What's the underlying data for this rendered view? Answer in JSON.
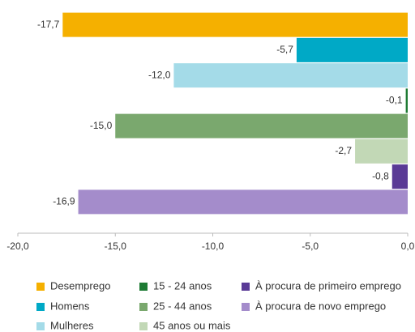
{
  "chart_data": {
    "type": "hbar",
    "categories": [
      "Desemprego",
      "Homens",
      "Mulheres",
      "15 - 24 anos",
      "25 - 44 anos",
      "45 anos ou mais",
      "À procura de primeiro emprego",
      "À procura de novo emprego"
    ],
    "values": [
      -17.7,
      -5.7,
      -12.0,
      -0.1,
      -15.0,
      -2.7,
      -0.8,
      -16.9
    ],
    "value_labels": [
      "-17,7",
      "-5,7",
      "-12,0",
      "-0,1",
      "-15,0",
      "-2,7",
      "-0,8",
      "-16,9"
    ],
    "colors": [
      "#f5b000",
      "#00a9c6",
      "#a4dbe8",
      "#1e7b34",
      "#7aa86e",
      "#c2d8b6",
      "#5a3a96",
      "#a48ccb"
    ],
    "xlim": [
      -20,
      0
    ],
    "xticks": [
      {
        "value": -20,
        "label": "-20,0"
      },
      {
        "value": -15,
        "label": "-15,0"
      },
      {
        "value": -10,
        "label": "-10,0"
      },
      {
        "value": -5,
        "label": "-5,0"
      },
      {
        "value": 0,
        "label": "0,0"
      }
    ]
  }
}
